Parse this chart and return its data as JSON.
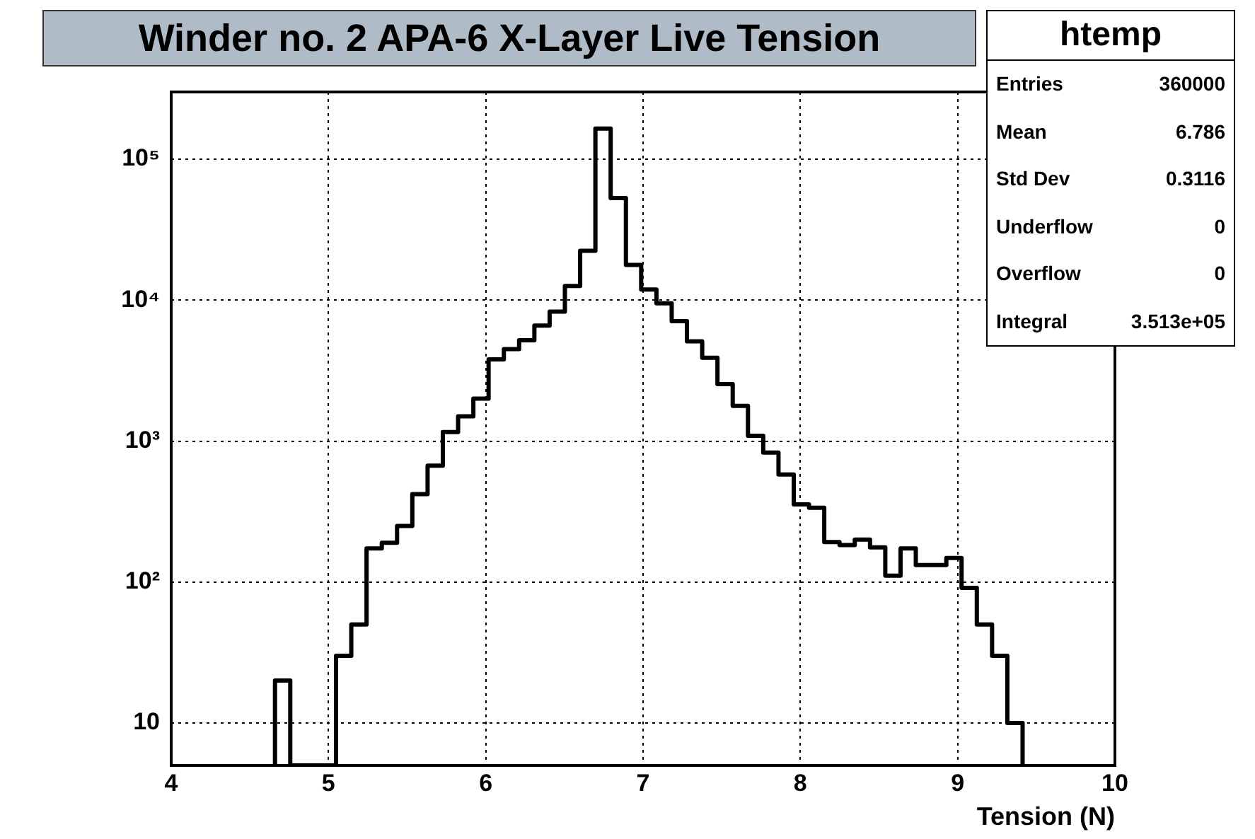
{
  "chart_data": {
    "type": "histogram",
    "title": "Winder no. 2 APA-6 X-Layer Live Tension",
    "xlabel": "Tension (N)",
    "bins": [
      4.66,
      4.757,
      4.854,
      4.951,
      5.048,
      5.145,
      5.242,
      5.339,
      5.436,
      5.533,
      5.63,
      5.727,
      5.824,
      5.921,
      6.018,
      6.115,
      6.212,
      6.309,
      6.406,
      6.503,
      6.6,
      6.697,
      6.794,
      6.891,
      6.988,
      7.085,
      7.182,
      7.279,
      7.376,
      7.473,
      7.57,
      7.667,
      7.764,
      7.861,
      7.958,
      8.055,
      8.152,
      8.249,
      8.346,
      8.443,
      8.54,
      8.637,
      8.734,
      8.831,
      8.928,
      9.025,
      9.122,
      9.219,
      9.316,
      9.413
    ],
    "values": [
      20,
      null,
      null,
      null,
      30,
      50,
      173,
      190,
      250,
      420,
      670,
      1160,
      1500,
      2000,
      3800,
      4500,
      5200,
      6600,
      8300,
      12600,
      22400,
      165000,
      53000,
      17800,
      11900,
      9500,
      7100,
      5100,
      3900,
      2540,
      1780,
      1090,
      830,
      580,
      356,
      337,
      192,
      183,
      200,
      176,
      111,
      173,
      132,
      132,
      148,
      91,
      50,
      30,
      10
    ],
    "color": "#000000",
    "log": true,
    "grid": true,
    "legend": false,
    "xlim": [
      4,
      10
    ],
    "xticks": [
      4,
      5,
      6,
      7,
      8,
      9,
      10
    ],
    "ylim": [
      5,
      300000
    ],
    "yticks": [
      {
        "value": 10,
        "label": "10"
      },
      {
        "value": 100,
        "label": "10²"
      },
      {
        "value": 1000,
        "label": "10³"
      },
      {
        "value": 10000,
        "label": "10⁴"
      },
      {
        "value": 100000,
        "label": "10⁵"
      }
    ],
    "annotations": [
      "htemp",
      "Entries 360000",
      "Mean 6.786",
      "Std Dev 0.3116",
      "Underflow 0",
      "Overflow 0",
      "Integral 3.513e+05"
    ]
  }
}
